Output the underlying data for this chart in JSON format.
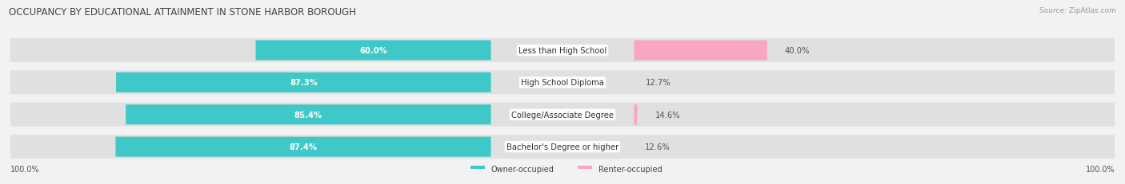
{
  "title": "OCCUPANCY BY EDUCATIONAL ATTAINMENT IN STONE HARBOR BOROUGH",
  "source": "Source: ZipAtlas.com",
  "categories": [
    "Less than High School",
    "High School Diploma",
    "College/Associate Degree",
    "Bachelor's Degree or higher"
  ],
  "owner_values": [
    60.0,
    87.3,
    85.4,
    87.4
  ],
  "renter_values": [
    40.0,
    12.7,
    14.6,
    12.6
  ],
  "owner_color": "#3ec8c8",
  "renter_color": "#f7a8c0",
  "owner_label": "Owner-occupied",
  "renter_label": "Renter-occupied",
  "bg_color": "#f2f2f2",
  "row_bg_color": "#e0e0e0",
  "title_fontsize": 8.5,
  "source_fontsize": 6.5,
  "label_fontsize": 7.2,
  "value_fontsize": 7.2,
  "legend_fontsize": 7.0,
  "axis_label_left": "100.0%",
  "axis_label_right": "100.0%",
  "figsize": [
    14.06,
    2.32
  ],
  "dpi": 100
}
